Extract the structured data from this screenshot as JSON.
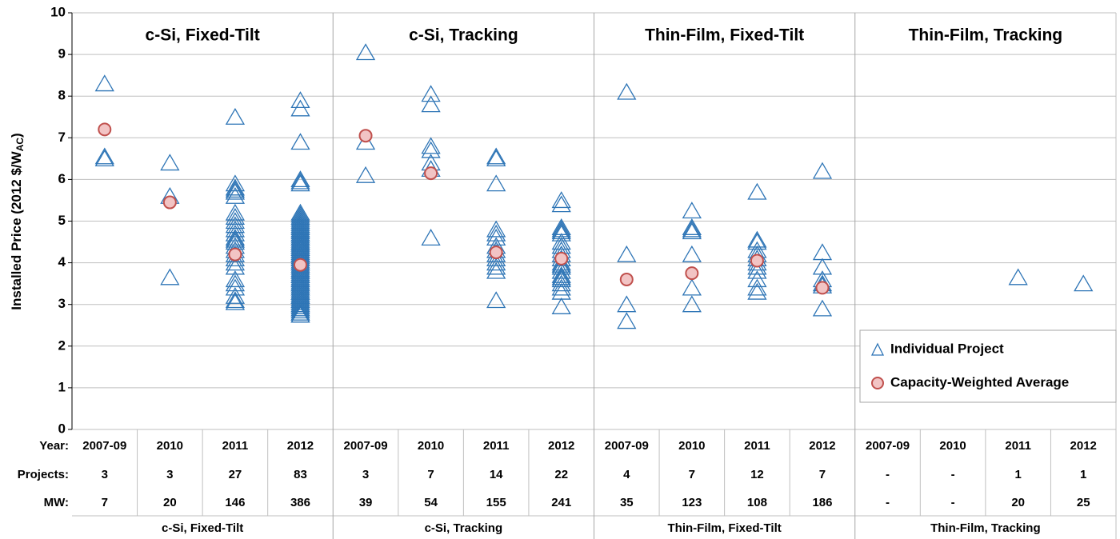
{
  "chart_data": {
    "type": "strip",
    "y_label": {
      "text": "Installed Price (2012 $/W",
      "subscript": "AC",
      "suffix": ")"
    },
    "ylim": [
      0,
      10
    ],
    "yticks": [
      0,
      1,
      2,
      3,
      4,
      5,
      6,
      7,
      8,
      9,
      10
    ],
    "grid": true,
    "legend": "lower right",
    "row_labels": [
      "Year:",
      "Projects:",
      "MW:"
    ],
    "series": [
      {
        "name": "Individual Project",
        "color": "#2e75b6",
        "marker": "triangle"
      },
      {
        "name": "Capacity-Weighted Average",
        "color": "#f2c4c4",
        "edge": "#c0504d",
        "marker": "circle"
      }
    ],
    "panels": [
      {
        "title": "c-Si, Fixed-Tilt",
        "categories": [
          "2007-09",
          "2010",
          "2011",
          "2012"
        ],
        "projects": [
          3,
          3,
          27,
          83
        ],
        "mw": [
          7,
          20,
          146,
          386
        ],
        "individual": [
          [
            8.3,
            6.55,
            6.5
          ],
          [
            6.4,
            5.6,
            3.65
          ],
          [
            7.5,
            5.9,
            5.8,
            5.7,
            5.6,
            5.2,
            5.0,
            4.9,
            4.8,
            4.6,
            4.5,
            4.4,
            4.3,
            4.2,
            4.1,
            4.0,
            3.9,
            3.6,
            3.5,
            3.4,
            3.2,
            3.1,
            3.05,
            4.7,
            4.55,
            5.1,
            5.75
          ],
          [
            7.9,
            7.7,
            6.9,
            6.0,
            5.95,
            5.9,
            5.2,
            5.15,
            5.1,
            5.05,
            5.0,
            4.95,
            4.9,
            4.85,
            4.8,
            4.75,
            4.7,
            4.65,
            4.6,
            4.55,
            4.5,
            4.45,
            4.4,
            4.35,
            4.3,
            4.25,
            4.2,
            4.15,
            4.1,
            4.05,
            4.0,
            3.95,
            3.9,
            3.85,
            3.8,
            3.75,
            3.7,
            3.65,
            3.6,
            3.55,
            3.5,
            3.45,
            3.4,
            3.35,
            3.3,
            3.25,
            3.2,
            3.15,
            3.1,
            3.05,
            3.0,
            2.95,
            2.9,
            2.85,
            2.8,
            2.75,
            2.75,
            4.8,
            4.7,
            4.6,
            4.5,
            4.4,
            4.3,
            4.2,
            4.0,
            3.8,
            3.6,
            3.4,
            3.2,
            3.0,
            2.8,
            4.9,
            4.5,
            4.1,
            3.7,
            3.3,
            2.9,
            4.6,
            4.2,
            3.5,
            3.1,
            4.4,
            3.9
          ]
        ],
        "average": [
          7.2,
          5.45,
          4.2,
          3.95
        ]
      },
      {
        "title": "c-Si, Tracking",
        "categories": [
          "2007-09",
          "2010",
          "2011",
          "2012"
        ],
        "projects": [
          3,
          7,
          14,
          22
        ],
        "mw": [
          39,
          54,
          155,
          241
        ],
        "individual": [
          [
            9.05,
            6.9,
            6.1
          ],
          [
            8.05,
            7.8,
            6.8,
            6.7,
            6.4,
            6.25,
            4.6
          ],
          [
            6.55,
            6.5,
            5.9,
            4.8,
            4.7,
            4.6,
            4.4,
            4.3,
            4.2,
            4.1,
            4.0,
            3.9,
            3.8,
            3.1
          ],
          [
            5.5,
            5.4,
            4.85,
            4.8,
            4.75,
            4.7,
            4.5,
            4.4,
            4.3,
            4.2,
            4.1,
            4.0,
            3.95,
            3.9,
            3.8,
            3.7,
            3.65,
            3.6,
            3.5,
            3.4,
            3.3,
            2.95
          ]
        ],
        "average": [
          7.05,
          6.15,
          4.25,
          4.1
        ]
      },
      {
        "title": "Thin-Film, Fixed-Tilt",
        "categories": [
          "2007-09",
          "2010",
          "2011",
          "2012"
        ],
        "projects": [
          4,
          7,
          12,
          7
        ],
        "mw": [
          35,
          123,
          108,
          186
        ],
        "individual": [
          [
            8.1,
            4.2,
            3.0,
            2.6
          ],
          [
            5.25,
            4.85,
            4.8,
            4.75,
            4.2,
            3.4,
            3.0
          ],
          [
            5.7,
            4.55,
            4.5,
            4.3,
            4.2,
            4.1,
            4.0,
            3.9,
            3.8,
            3.6,
            3.4,
            3.3
          ],
          [
            6.2,
            4.25,
            3.9,
            3.6,
            3.5,
            3.45,
            2.9
          ]
        ],
        "average": [
          3.6,
          3.75,
          4.05,
          3.4
        ]
      },
      {
        "title": "Thin-Film, Tracking",
        "categories": [
          "2007-09",
          "2010",
          "2011",
          "2012"
        ],
        "projects": [
          "-",
          "-",
          1,
          1
        ],
        "mw": [
          "-",
          "-",
          20,
          25
        ],
        "individual": [
          [],
          [],
          [
            3.65
          ],
          [
            3.5
          ]
        ],
        "average": [
          null,
          null,
          null,
          null
        ]
      }
    ]
  }
}
